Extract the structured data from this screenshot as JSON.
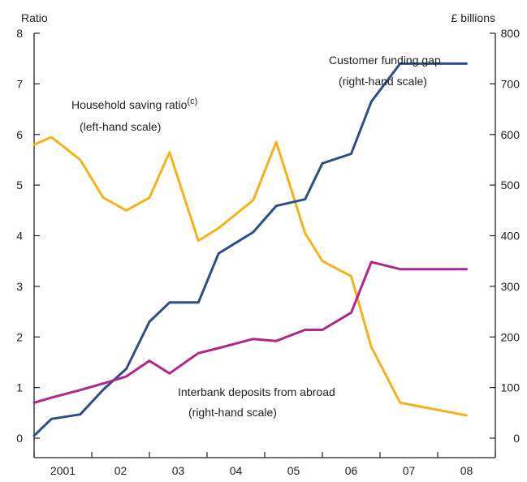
{
  "chart_data": {
    "type": "line",
    "left_axis": {
      "title": "Ratio",
      "min": 0,
      "max": 8,
      "ticks": [
        0,
        1,
        2,
        3,
        4,
        5,
        6,
        7,
        8
      ]
    },
    "right_axis": {
      "title": "£ billions",
      "min": 0,
      "max": 800,
      "ticks": [
        0,
        100,
        200,
        300,
        400,
        500,
        600,
        700,
        800
      ]
    },
    "x_axis": {
      "labels": [
        {
          "text": "2001",
          "x": 2001.0
        },
        {
          "text": "02",
          "x": 2002.0
        },
        {
          "text": "03",
          "x": 2003.0
        },
        {
          "text": "04",
          "x": 2004.0
        },
        {
          "text": "05",
          "x": 2005.0
        },
        {
          "text": "06",
          "x": 2006.0
        },
        {
          "text": "07",
          "x": 2007.0
        },
        {
          "text": "08",
          "x": 2008.0
        }
      ],
      "min": 2000.5,
      "max": 2008.5
    },
    "grid": false,
    "series": [
      {
        "name": "Household saving ratio",
        "annotation_line1": "Household saving ratio",
        "annotation_sup": "(c)",
        "annotation_line2": "(left-hand scale)",
        "axis": "left",
        "color": "#f5b21b",
        "x": [
          2000.5,
          2000.8,
          2001.3,
          2001.7,
          2002.1,
          2002.5,
          2002.85,
          2003.35,
          2003.7,
          2004.3,
          2004.7,
          2005.2,
          2005.5,
          2006.0,
          2006.35,
          2006.85,
          2008.0
        ],
        "y": [
          5.8,
          5.95,
          5.5,
          4.75,
          4.5,
          4.75,
          5.65,
          3.9,
          4.15,
          4.7,
          5.85,
          4.05,
          3.5,
          3.2,
          1.8,
          0.7,
          0.45
        ]
      },
      {
        "name": "Customer funding gap",
        "annotation_line1": "Customer funding gap",
        "annotation_line2": "(right-hand scale)",
        "axis": "right",
        "color": "#2e4e86",
        "x": [
          2000.5,
          2000.8,
          2001.3,
          2001.7,
          2002.1,
          2002.5,
          2002.85,
          2003.35,
          2003.7,
          2004.3,
          2004.7,
          2005.2,
          2005.5,
          2006.0,
          2006.35,
          2006.85,
          2008.0
        ],
        "y": [
          5,
          38,
          47,
          96,
          137,
          230,
          268,
          268,
          365,
          407,
          459,
          472,
          543,
          562,
          665,
          740,
          740
        ]
      },
      {
        "name": "Interbank deposits from abroad",
        "annotation_line1": "Interbank deposits from abroad",
        "annotation_line2": "(right-hand scale)",
        "axis": "right",
        "color": "#b2268c",
        "x": [
          2000.5,
          2000.8,
          2001.3,
          2001.7,
          2002.1,
          2002.5,
          2002.85,
          2003.35,
          2003.7,
          2004.3,
          2004.7,
          2005.2,
          2005.5,
          2006.0,
          2006.35,
          2006.85,
          2008.0
        ],
        "y": [
          70,
          80,
          95,
          108,
          122,
          153,
          128,
          168,
          178,
          196,
          192,
          214,
          214,
          248,
          348,
          334,
          334
        ]
      }
    ]
  }
}
